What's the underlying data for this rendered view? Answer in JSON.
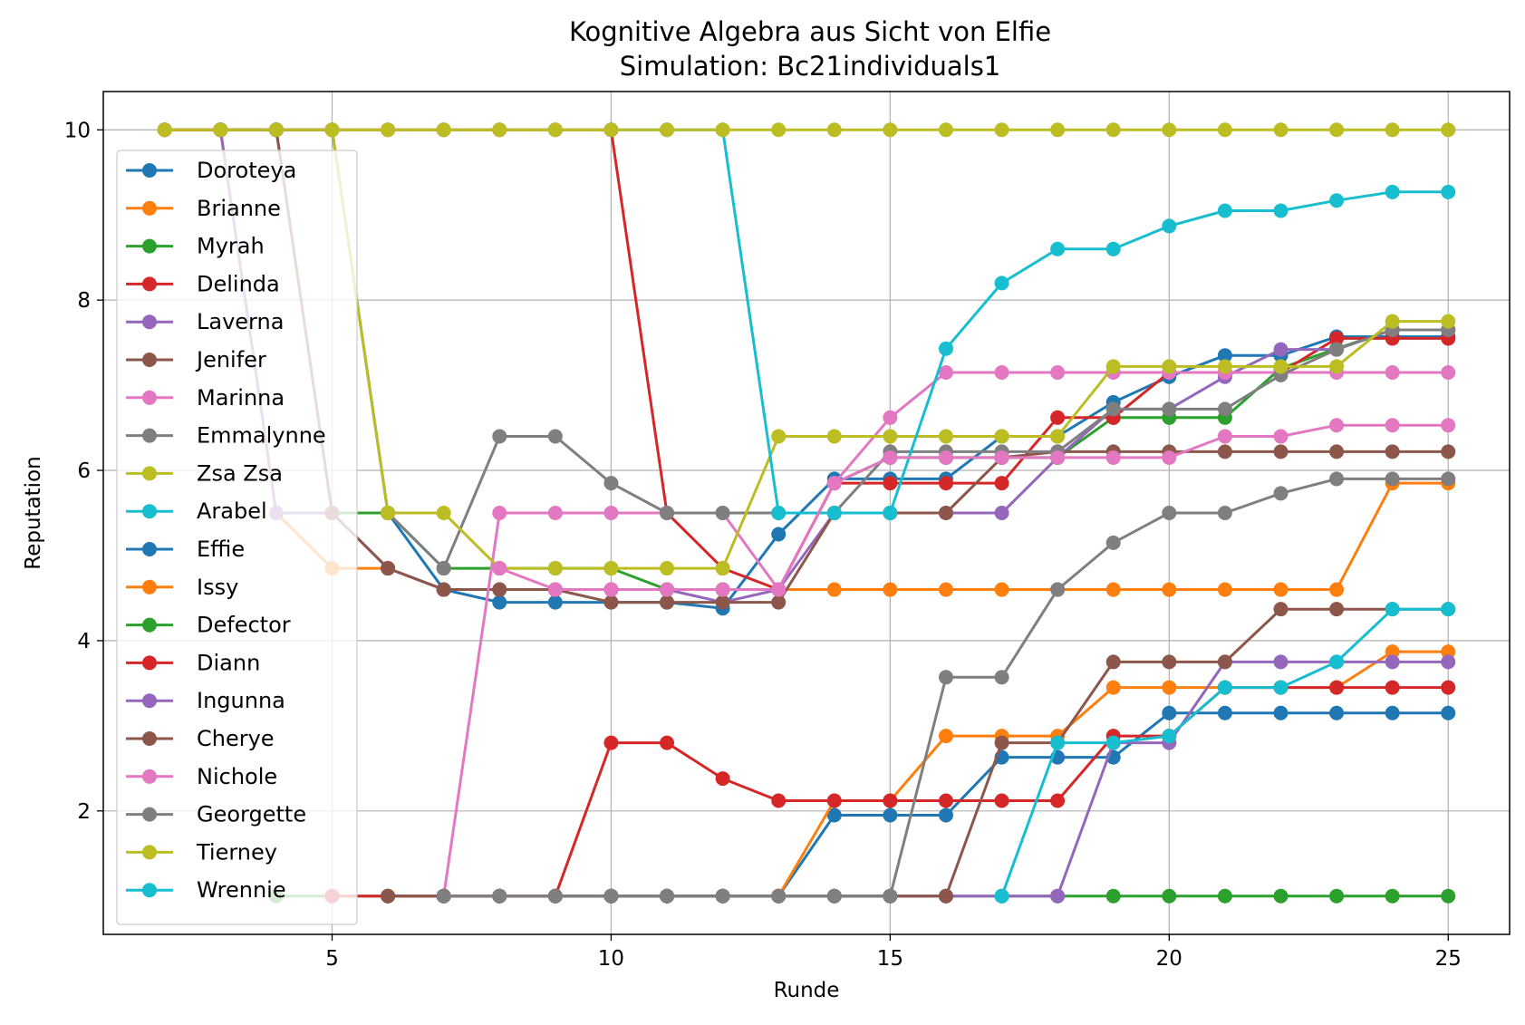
{
  "chart_data": {
    "type": "line",
    "title": "Kognitive Algebra aus Sicht von Elfie",
    "subtitle": "Simulation: Bc21individuals1",
    "xlabel": "Runde",
    "ylabel": "Reputation",
    "xlim": [
      0.9,
      26.1
    ],
    "ylim": [
      0.55,
      10.45
    ],
    "xticks": [
      5,
      10,
      15,
      20,
      25
    ],
    "yticks": [
      2,
      4,
      6,
      8,
      10
    ],
    "grid": true,
    "legend_position": "left",
    "marker": "circle",
    "series": [
      {
        "name": "Doroteya",
        "color": "#1f77b4",
        "x": [
          2,
          3,
          4,
          5,
          6,
          7,
          8,
          9,
          10,
          11,
          12,
          13,
          14,
          15,
          16,
          17,
          18,
          19,
          20,
          21,
          22,
          23,
          24,
          25
        ],
        "values": [
          10,
          10,
          10,
          10,
          5.5,
          4.6,
          4.45,
          4.45,
          4.45,
          4.45,
          4.38,
          5.25,
          5.9,
          5.9,
          5.9,
          6.4,
          6.4,
          6.8,
          7.1,
          7.35,
          7.35,
          7.57,
          7.57,
          7.57
        ]
      },
      {
        "name": "Brianne",
        "color": "#ff7f0e",
        "x": [
          2,
          3,
          4,
          5,
          6,
          7,
          8,
          9,
          10,
          11,
          12,
          13,
          14,
          15,
          16,
          17,
          18,
          19,
          20,
          21,
          22,
          23,
          24,
          25
        ],
        "values": [
          10,
          10,
          5.5,
          4.85,
          4.85,
          4.6,
          4.6,
          4.6,
          4.6,
          4.6,
          4.6,
          4.6,
          4.6,
          4.6,
          4.6,
          4.6,
          4.6,
          4.6,
          4.6,
          4.6,
          4.6,
          4.6,
          5.85,
          5.85
        ]
      },
      {
        "name": "Myrah",
        "color": "#2ca02c",
        "x": [
          3,
          4,
          5,
          6,
          7,
          8,
          9,
          10,
          11,
          12,
          13,
          14,
          15,
          16,
          17,
          18,
          19,
          20,
          21,
          22,
          23,
          24,
          25
        ],
        "values": [
          10,
          10,
          5.5,
          5.5,
          4.85,
          4.85,
          4.85,
          4.85,
          4.6,
          4.6,
          4.6,
          5.85,
          6.15,
          6.15,
          6.15,
          6.15,
          6.62,
          6.62,
          6.62,
          7.2,
          7.43,
          7.65,
          7.65
        ]
      },
      {
        "name": "Delinda",
        "color": "#d62728",
        "x": [
          2,
          3,
          4,
          5,
          6,
          7,
          8,
          9,
          10,
          11,
          12,
          13,
          14,
          15,
          16,
          17,
          18,
          19,
          20,
          21,
          22,
          23,
          24,
          25
        ],
        "values": [
          10,
          10,
          10,
          10,
          10,
          10,
          10,
          10,
          10,
          5.5,
          4.85,
          4.6,
          5.85,
          5.85,
          5.85,
          5.85,
          6.62,
          6.62,
          7.15,
          7.15,
          7.15,
          7.55,
          7.55,
          7.55
        ]
      },
      {
        "name": "Laverna",
        "color": "#9467bd",
        "x": [
          3,
          4,
          5,
          6,
          7,
          8,
          9,
          10,
          11,
          12,
          13,
          14,
          15,
          16,
          17,
          18,
          19,
          20,
          21,
          22,
          23,
          24,
          25
        ],
        "values": [
          10,
          5.5,
          5.5,
          4.85,
          4.6,
          4.6,
          4.6,
          4.6,
          4.6,
          4.45,
          4.6,
          5.5,
          5.5,
          5.5,
          5.5,
          6.15,
          6.72,
          6.72,
          7.1,
          7.42,
          7.42,
          7.65,
          7.65
        ]
      },
      {
        "name": "Jenifer",
        "color": "#8c564b",
        "x": [
          3,
          4,
          5,
          6,
          7,
          8,
          9,
          10,
          11,
          12,
          13,
          14,
          15,
          16,
          17,
          18,
          19,
          20,
          21,
          22,
          23,
          24,
          25
        ],
        "values": [
          10,
          10,
          5.5,
          4.85,
          4.6,
          4.6,
          4.6,
          4.45,
          4.45,
          4.45,
          4.45,
          5.5,
          5.5,
          5.5,
          6.15,
          6.22,
          6.22,
          6.22,
          6.22,
          6.22,
          6.22,
          6.22,
          6.22
        ]
      },
      {
        "name": "Marinna",
        "color": "#e377c2",
        "x": [
          7,
          8,
          9,
          10,
          11,
          12,
          13,
          14,
          15,
          16,
          17,
          18,
          19,
          20,
          21,
          22,
          23,
          24,
          25
        ],
        "values": [
          1,
          5.5,
          5.5,
          5.5,
          5.5,
          5.5,
          4.6,
          5.85,
          6.62,
          7.15,
          7.15,
          7.15,
          7.15,
          7.15,
          7.15,
          7.15,
          7.15,
          7.15,
          7.15
        ]
      },
      {
        "name": "Emmalynne",
        "color": "#7f7f7f",
        "x": [
          6,
          7,
          8,
          9,
          10,
          11,
          12,
          13,
          14,
          15,
          16,
          17,
          18,
          19,
          20,
          21,
          22,
          23,
          24,
          25
        ],
        "values": [
          5.5,
          4.85,
          6.4,
          6.4,
          5.85,
          5.5,
          5.5,
          5.5,
          5.5,
          6.22,
          6.22,
          6.22,
          6.22,
          6.72,
          6.72,
          6.72,
          7.12,
          7.42,
          7.65,
          7.65
        ]
      },
      {
        "name": "Zsa Zsa",
        "color": "#bcbd22",
        "x": [
          5,
          6,
          7,
          8,
          9,
          10,
          11,
          12,
          13,
          14,
          15,
          16,
          17,
          18,
          19,
          20,
          21,
          22,
          23,
          24,
          25
        ],
        "values": [
          10,
          5.5,
          5.5,
          4.85,
          4.85,
          4.85,
          4.85,
          4.85,
          6.4,
          6.4,
          6.4,
          6.4,
          6.4,
          6.4,
          7.22,
          7.22,
          7.22,
          7.22,
          7.22,
          7.75,
          7.75
        ]
      },
      {
        "name": "Arabel",
        "color": "#17becf",
        "x": [
          10,
          11,
          12,
          13,
          14,
          15,
          16,
          17,
          18,
          19,
          20,
          21,
          22,
          23,
          24,
          25
        ],
        "values": [
          10,
          10,
          10,
          5.5,
          5.5,
          5.5,
          7.43,
          8.2,
          8.6,
          8.6,
          8.87,
          9.05,
          9.05,
          9.17,
          9.27,
          9.27
        ]
      },
      {
        "name": "Effie",
        "color": "#1f77b4",
        "x": [
          7,
          8,
          9,
          10,
          11,
          12,
          13,
          14,
          15,
          16,
          17,
          18,
          19,
          20,
          21,
          22,
          23,
          24,
          25
        ],
        "values": [
          1,
          1,
          1,
          1,
          1,
          1,
          1,
          1.95,
          1.95,
          1.95,
          2.63,
          2.63,
          2.63,
          3.15,
          3.15,
          3.15,
          3.15,
          3.15,
          3.15
        ]
      },
      {
        "name": "Issy",
        "color": "#ff7f0e",
        "x": [
          7,
          8,
          9,
          10,
          11,
          12,
          13,
          14,
          15,
          16,
          17,
          18,
          19,
          20,
          21,
          22,
          23,
          24,
          25
        ],
        "values": [
          1,
          1,
          1,
          1,
          1,
          1,
          1,
          2.12,
          2.12,
          2.88,
          2.88,
          2.88,
          3.45,
          3.45,
          3.45,
          3.45,
          3.45,
          3.87,
          3.87
        ]
      },
      {
        "name": "Defector",
        "color": "#2ca02c",
        "x": [
          4,
          5,
          6,
          7,
          8,
          9,
          10,
          11,
          12,
          13,
          14,
          15,
          16,
          17,
          18,
          19,
          20,
          21,
          22,
          23,
          24,
          25
        ],
        "values": [
          1,
          1,
          1,
          1,
          1,
          1,
          1,
          1,
          1,
          1,
          1,
          1,
          1,
          1,
          1,
          1,
          1,
          1,
          1,
          1,
          1,
          1
        ]
      },
      {
        "name": "Diann",
        "color": "#d62728",
        "x": [
          5,
          6,
          7,
          8,
          9,
          10,
          11,
          12,
          13,
          14,
          15,
          16,
          17,
          18,
          19,
          20,
          21,
          22,
          23,
          24,
          25
        ],
        "values": [
          1,
          1,
          1,
          1,
          1,
          2.8,
          2.8,
          2.38,
          2.12,
          2.12,
          2.12,
          2.12,
          2.12,
          2.12,
          2.88,
          2.88,
          3.45,
          3.45,
          3.45,
          3.45,
          3.45
        ]
      },
      {
        "name": "Ingunna",
        "color": "#9467bd",
        "x": [
          7,
          8,
          9,
          10,
          11,
          12,
          13,
          14,
          15,
          16,
          17,
          18,
          19,
          20,
          21,
          22,
          23,
          24,
          25
        ],
        "values": [
          1,
          1,
          1,
          1,
          1,
          1,
          1,
          1,
          1,
          1,
          1,
          1,
          2.8,
          2.8,
          3.75,
          3.75,
          3.75,
          3.75,
          3.75
        ]
      },
      {
        "name": "Cherye",
        "color": "#8c564b",
        "x": [
          6,
          7,
          8,
          9,
          10,
          11,
          12,
          13,
          14,
          15,
          16,
          17,
          18,
          19,
          20,
          21,
          22,
          23,
          24,
          25
        ],
        "values": [
          1,
          1,
          1,
          1,
          1,
          1,
          1,
          1,
          1,
          1,
          1,
          2.8,
          2.8,
          3.75,
          3.75,
          3.75,
          4.37,
          4.37,
          4.37,
          4.37
        ]
      },
      {
        "name": "Nichole",
        "color": "#e377c2",
        "x": [
          8,
          9,
          10,
          11,
          12,
          13,
          14,
          15,
          16,
          17,
          18,
          19,
          20,
          21,
          22,
          23,
          24,
          25
        ],
        "values": [
          4.85,
          4.6,
          4.6,
          4.6,
          4.6,
          4.6,
          5.85,
          6.15,
          6.15,
          6.15,
          6.15,
          6.15,
          6.15,
          6.4,
          6.4,
          6.53,
          6.53,
          6.53
        ]
      },
      {
        "name": "Georgette",
        "color": "#7f7f7f",
        "x": [
          7,
          8,
          9,
          10,
          11,
          12,
          13,
          14,
          15,
          16,
          17,
          18,
          19,
          20,
          21,
          22,
          23,
          24,
          25
        ],
        "values": [
          1,
          1,
          1,
          1,
          1,
          1,
          1,
          1,
          1,
          3.57,
          3.57,
          4.6,
          5.15,
          5.5,
          5.5,
          5.73,
          5.9,
          5.9,
          5.9
        ]
      },
      {
        "name": "Tierney",
        "color": "#bcbd22",
        "x": [
          2,
          3,
          4,
          5,
          6,
          7,
          8,
          9,
          10,
          11,
          12,
          13,
          14,
          15,
          16,
          17,
          18,
          19,
          20,
          21,
          22,
          23,
          24,
          25
        ],
        "values": [
          10,
          10,
          10,
          10,
          10,
          10,
          10,
          10,
          10,
          10,
          10,
          10,
          10,
          10,
          10,
          10,
          10,
          10,
          10,
          10,
          10,
          10,
          10,
          10
        ]
      },
      {
        "name": "Wrennie",
        "color": "#17becf",
        "x": [
          17,
          18,
          19,
          20,
          21,
          22,
          23,
          24,
          25
        ],
        "values": [
          1,
          2.8,
          2.8,
          2.88,
          3.45,
          3.45,
          3.75,
          4.37,
          4.37
        ]
      }
    ]
  }
}
